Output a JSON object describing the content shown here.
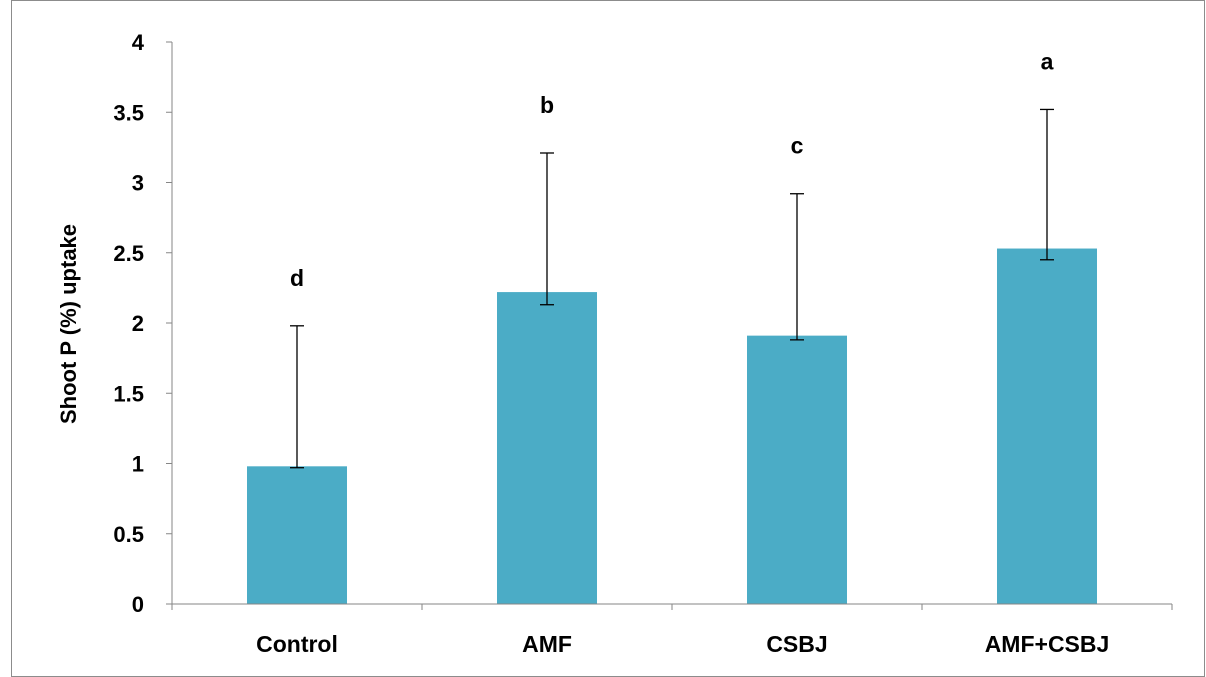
{
  "chart_data": {
    "type": "bar",
    "categories": [
      "Control",
      "AMF",
      "CSBJ",
      "AMF+CSBJ"
    ],
    "values": [
      0.98,
      2.22,
      1.91,
      2.53
    ],
    "error_upper": [
      1.98,
      3.21,
      2.92,
      3.52
    ],
    "error_lower": [
      0.97,
      2.13,
      1.88,
      2.45
    ],
    "significance_letters": [
      "d",
      "b",
      "c",
      "a"
    ],
    "title": "",
    "xlabel": "",
    "ylabel": "Shoot P (%) uptake",
    "ylim": [
      0,
      4
    ],
    "yticks": [
      "0",
      "0.5",
      "1",
      "1.5",
      "2",
      "2.5",
      "3",
      "3.5",
      "4"
    ],
    "ytick_values": [
      0,
      0.5,
      1,
      1.5,
      2,
      2.5,
      3,
      3.5,
      4
    ],
    "grid": false,
    "legend": "none",
    "bar_color": "#4bacc6",
    "axis_color": "#868686",
    "frame_color": "#8c8c8c"
  }
}
